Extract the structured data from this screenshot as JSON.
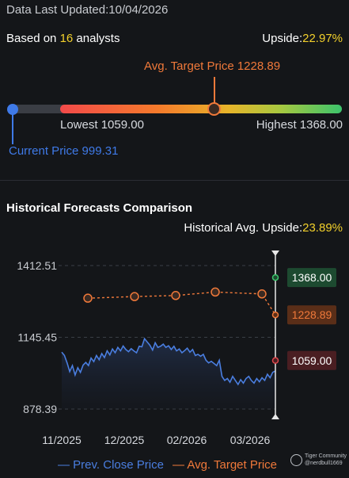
{
  "header": {
    "updated_label": "Data Last Updated:",
    "updated_date": "10/04/2026",
    "based_prefix": "Based on ",
    "analysts_count": "16",
    "based_suffix": " analysts",
    "upside_label": "Upside:",
    "upside_value": "22.97%"
  },
  "range": {
    "avg_target_label": "Avg. Target Price 1228.89",
    "lowest_label": "Lowest 1059.00",
    "highest_label": "Highest 1368.00",
    "current_label": "Current Price 999.31",
    "current": 999.31,
    "lowest": 1059.0,
    "avg_target": 1228.89,
    "highest": 1368.0
  },
  "history": {
    "title": "Historical Forecasts Comparison",
    "avg_upside_label": "Historical Avg. Upside:",
    "avg_upside_value": "23.89%"
  },
  "colors": {
    "close": "#4a7ee0",
    "target": "#f0793a",
    "high": "#3cc46c",
    "low": "#e0474c",
    "accent_yellow": "#f2d02b"
  },
  "chart_data": {
    "type": "line",
    "x_ticks": [
      "11/2025",
      "12/2025",
      "02/2026",
      "03/2026"
    ],
    "y_ticks": [
      "1412.51",
      "1145.45",
      "878.39"
    ],
    "ylim": [
      878.39,
      1412.51
    ],
    "series": [
      {
        "name": "Prev. Close Price",
        "values": [
          1090,
          1078,
          1050,
          1018,
          1040,
          1005,
          1032,
          1015,
          1042,
          1052,
          1040,
          1068,
          1055,
          1078,
          1062,
          1085,
          1070,
          1095,
          1080,
          1102,
          1088,
          1108,
          1095,
          1113,
          1100,
          1092,
          1103,
          1095,
          1088,
          1112,
          1110,
          1140,
          1128,
          1116,
          1098,
          1125,
          1108,
          1112,
          1120,
          1108,
          1114,
          1100,
          1112,
          1095,
          1102,
          1088,
          1096,
          1105,
          1090,
          1100,
          1078,
          1082,
          1075,
          1082,
          1060,
          1050,
          1056,
          1048,
          1040,
          1060,
          1000,
          985,
          992,
          978,
          1000,
          985,
          970,
          988,
          975,
          992,
          1000,
          985,
          975,
          992,
          980,
          995,
          985,
          1008,
          995,
          1015,
          1020
        ]
      },
      {
        "name": "Avg. Target Price",
        "points": [
          1291,
          1297,
          1301,
          1314,
          1307,
          1228.89
        ]
      }
    ],
    "markers": [
      {
        "label": "1368.00",
        "value": 1368.0
      },
      {
        "label": "1228.89",
        "value": 1228.89
      },
      {
        "label": "1059.00",
        "value": 1059.0
      }
    ],
    "legend": [
      "Prev. Close Price",
      "Avg. Target Price"
    ],
    "legend_placement": "bottom"
  },
  "watermark": {
    "brand": "Tiger Community",
    "user": "@nerdbull1669"
  }
}
